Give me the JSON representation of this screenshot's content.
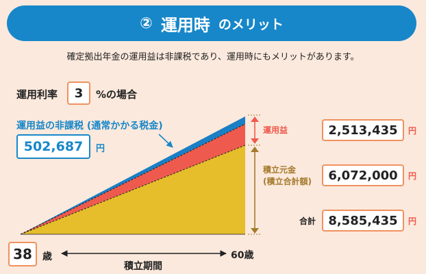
{
  "header": {
    "number": "②",
    "title_main": "運用時",
    "title_sub": "のメリット"
  },
  "subtitle": "確定拠出年金の運用益は非課税であり、運用時にもメリットがあります。",
  "rate": {
    "label": "運用利率",
    "value": "3",
    "suffix": "%の場合"
  },
  "tax_free": {
    "label": "運用益の非課税 (通常かかる税金)",
    "value": "502,687",
    "unit": "円"
  },
  "breakdown": {
    "gain_label": "運用益",
    "principal_label_1": "積立元金",
    "principal_label_2": "(積立合計額)",
    "total_label": "合計",
    "gain_value": "2,513,435",
    "principal_value": "6,072,000",
    "total_value": "8,585,435",
    "unit": "円"
  },
  "timeline": {
    "start_age": "38",
    "start_suffix": "歳",
    "end_age": "60歳",
    "period_label": "積立期間"
  },
  "colors": {
    "banner": "#1787c9",
    "tax": "#1787c9",
    "gain": "#ef5a4e",
    "principal": "#e6bd2a",
    "bracket": "#a47a2c",
    "box_border": "#f0915e",
    "background": "#fbe9dd"
  }
}
